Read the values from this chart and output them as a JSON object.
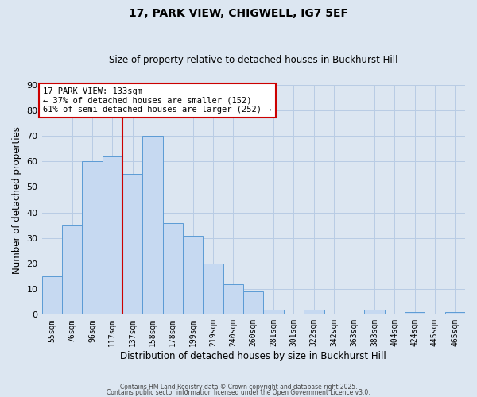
{
  "title": "17, PARK VIEW, CHIGWELL, IG7 5EF",
  "subtitle": "Size of property relative to detached houses in Buckhurst Hill",
  "xlabel": "Distribution of detached houses by size in Buckhurst Hill",
  "ylabel": "Number of detached properties",
  "bar_labels": [
    "55sqm",
    "76sqm",
    "96sqm",
    "117sqm",
    "137sqm",
    "158sqm",
    "178sqm",
    "199sqm",
    "219sqm",
    "240sqm",
    "260sqm",
    "281sqm",
    "301sqm",
    "322sqm",
    "342sqm",
    "363sqm",
    "383sqm",
    "404sqm",
    "424sqm",
    "445sqm",
    "465sqm"
  ],
  "bar_values": [
    15,
    35,
    60,
    62,
    55,
    70,
    36,
    31,
    20,
    12,
    9,
    2,
    0,
    2,
    0,
    0,
    2,
    0,
    1,
    0,
    1
  ],
  "bar_color": "#c6d9f1",
  "bar_edge_color": "#5b9bd5",
  "vline_color": "#cc0000",
  "annotation_text": "17 PARK VIEW: 133sqm\n← 37% of detached houses are smaller (152)\n61% of semi-detached houses are larger (252) →",
  "annotation_box_edgecolor": "#cc0000",
  "annotation_box_facecolor": "#ffffff",
  "ylim": [
    0,
    90
  ],
  "yticks": [
    0,
    10,
    20,
    30,
    40,
    50,
    60,
    70,
    80,
    90
  ],
  "grid_color": "#b8cce4",
  "background_color": "#dce6f1",
  "footer_line1": "Contains HM Land Registry data © Crown copyright and database right 2025.",
  "footer_line2": "Contains public sector information licensed under the Open Government Licence v3.0."
}
